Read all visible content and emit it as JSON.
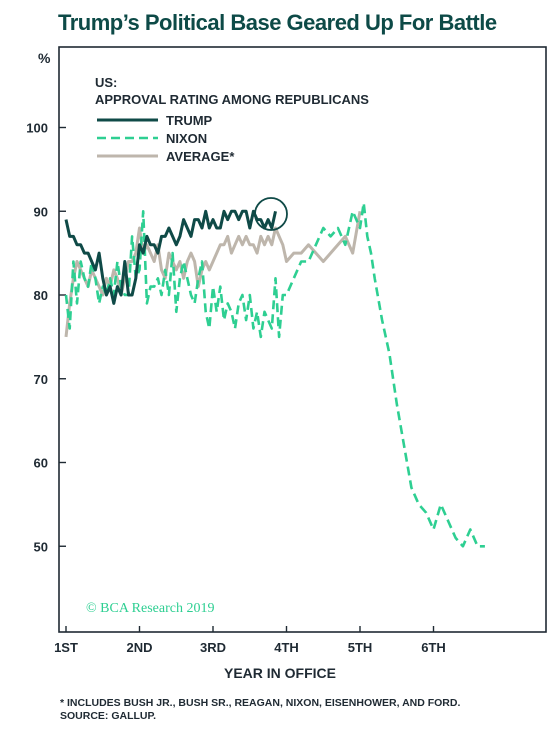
{
  "title": "Trump’s Political Base Geared Up For Battle",
  "footnote": "* INCLUDES BUSH JR., BUSH SR., REAGAN, NIXON, EISENHOWER, AND FORD.",
  "source": "SOURCE: GALLUP.",
  "credit": "© BCA Research 2019",
  "chart_data": {
    "type": "line",
    "title": "US:",
    "subtitle": "APPROVAL RATING AMONG REPUBLICANS",
    "ylabel": "%",
    "xlabel": "YEAR IN OFFICE",
    "ylim": [
      40,
      100
    ],
    "xlim": [
      1,
      6.8
    ],
    "yticks": [
      50,
      60,
      70,
      80,
      90,
      100
    ],
    "xticks": [
      {
        "value": 1,
        "label": "1ST"
      },
      {
        "value": 2,
        "label": "2ND"
      },
      {
        "value": 3,
        "label": "3RD"
      },
      {
        "value": 4,
        "label": "4TH"
      },
      {
        "value": 5,
        "label": "5TH"
      },
      {
        "value": 6,
        "label": "6TH"
      }
    ],
    "grid": false,
    "legend": "top-left",
    "annotation": "circle around latest Trump reading",
    "series": [
      {
        "name": "TRUMP",
        "color": "#0f4a47",
        "dash": "solid",
        "x": [
          1.0,
          1.05,
          1.1,
          1.15,
          1.2,
          1.25,
          1.3,
          1.35,
          1.4,
          1.45,
          1.5,
          1.55,
          1.6,
          1.65,
          1.7,
          1.75,
          1.8,
          1.85,
          1.9,
          1.95,
          2.0,
          2.05,
          2.1,
          2.15,
          2.2,
          2.25,
          2.3,
          2.35,
          2.4,
          2.45,
          2.5,
          2.55,
          2.6,
          2.65,
          2.7,
          2.75,
          2.8,
          2.85,
          2.9,
          2.95,
          3.0,
          3.05,
          3.1,
          3.15,
          3.2,
          3.25,
          3.3,
          3.35,
          3.4,
          3.45,
          3.5,
          3.55,
          3.6,
          3.65,
          3.7,
          3.75,
          3.8,
          3.85
        ],
        "values": [
          89,
          87,
          87,
          86,
          86,
          85,
          85,
          84,
          83,
          85,
          82,
          80,
          81,
          79,
          81,
          80,
          84,
          80,
          80,
          82,
          86,
          85,
          87,
          86,
          86,
          85,
          87,
          87,
          88,
          87,
          86,
          87,
          89,
          88,
          87,
          89,
          89,
          88,
          90,
          88,
          89,
          88,
          88,
          90,
          89,
          90,
          90,
          89,
          90,
          90,
          88,
          90,
          89,
          89,
          88,
          89,
          88,
          90
        ]
      },
      {
        "name": "NIXON",
        "color": "#2ecf92",
        "dash": "dashed",
        "x": [
          1.0,
          1.05,
          1.1,
          1.15,
          1.2,
          1.25,
          1.3,
          1.35,
          1.4,
          1.45,
          1.5,
          1.55,
          1.6,
          1.65,
          1.7,
          1.75,
          1.8,
          1.85,
          1.9,
          1.95,
          2.0,
          2.05,
          2.1,
          2.15,
          2.2,
          2.25,
          2.3,
          2.35,
          2.4,
          2.45,
          2.5,
          2.55,
          2.6,
          2.65,
          2.7,
          2.75,
          2.8,
          2.85,
          2.9,
          2.95,
          3.0,
          3.05,
          3.1,
          3.15,
          3.2,
          3.25,
          3.3,
          3.35,
          3.4,
          3.45,
          3.5,
          3.55,
          3.6,
          3.65,
          3.7,
          3.75,
          3.8,
          3.85,
          3.9,
          3.95,
          4.0,
          4.1,
          4.2,
          4.3,
          4.4,
          4.5,
          4.6,
          4.7,
          4.8,
          4.9,
          5.0,
          5.05,
          5.1,
          5.15,
          5.2,
          5.3,
          5.4,
          5.5,
          5.6,
          5.7,
          5.8,
          5.9,
          6.0,
          6.1,
          6.2,
          6.3,
          6.4,
          6.5,
          6.6,
          6.7
        ],
        "values": [
          80,
          76,
          84,
          79,
          84,
          82,
          81,
          84,
          82,
          79,
          81,
          80,
          82,
          80,
          84,
          81,
          80,
          80,
          87,
          82,
          83,
          90,
          79,
          81,
          81,
          82,
          80,
          83,
          80,
          85,
          78,
          82,
          84,
          82,
          80,
          79,
          82,
          84,
          78,
          76,
          81,
          78,
          81,
          77,
          79,
          78,
          76,
          79,
          80,
          77,
          80,
          76,
          78,
          75,
          78,
          77,
          76,
          82,
          75,
          80,
          80,
          82,
          84,
          84,
          86,
          88,
          87,
          88,
          86,
          90,
          88,
          91,
          87,
          85,
          82,
          77,
          73,
          67,
          62,
          57,
          55,
          54,
          52,
          55,
          53,
          51,
          50,
          52,
          50,
          50
        ]
      },
      {
        "name": "AVERAGE*",
        "color": "#beb6ac",
        "dash": "solid",
        "x": [
          1.0,
          1.05,
          1.1,
          1.15,
          1.2,
          1.25,
          1.3,
          1.35,
          1.4,
          1.45,
          1.5,
          1.55,
          1.6,
          1.65,
          1.7,
          1.75,
          1.8,
          1.85,
          1.9,
          1.95,
          2.0,
          2.05,
          2.1,
          2.15,
          2.2,
          2.25,
          2.3,
          2.35,
          2.4,
          2.45,
          2.5,
          2.55,
          2.6,
          2.65,
          2.7,
          2.75,
          2.8,
          2.85,
          2.9,
          2.95,
          3.0,
          3.05,
          3.1,
          3.15,
          3.2,
          3.25,
          3.3,
          3.35,
          3.4,
          3.45,
          3.5,
          3.55,
          3.6,
          3.65,
          3.7,
          3.75,
          3.8,
          3.85,
          3.9,
          3.95,
          4.0,
          4.1,
          4.2,
          4.3,
          4.4,
          4.5,
          4.6,
          4.7,
          4.8,
          4.9,
          5.0
        ],
        "values": [
          75,
          79,
          82,
          84,
          83,
          82,
          81,
          83,
          82,
          81,
          80,
          82,
          81,
          83,
          82,
          80,
          82,
          84,
          84,
          85,
          88,
          85,
          86,
          85,
          84,
          86,
          83,
          82,
          85,
          84,
          83,
          84,
          82,
          84,
          85,
          84,
          81,
          83,
          84,
          83,
          84,
          85,
          86,
          86,
          87,
          85,
          86,
          87,
          86,
          87,
          86,
          86,
          85,
          87,
          86,
          87,
          86,
          88,
          87,
          86,
          84,
          85,
          85,
          86,
          85,
          84,
          85,
          86,
          87,
          85,
          90
        ]
      }
    ]
  }
}
